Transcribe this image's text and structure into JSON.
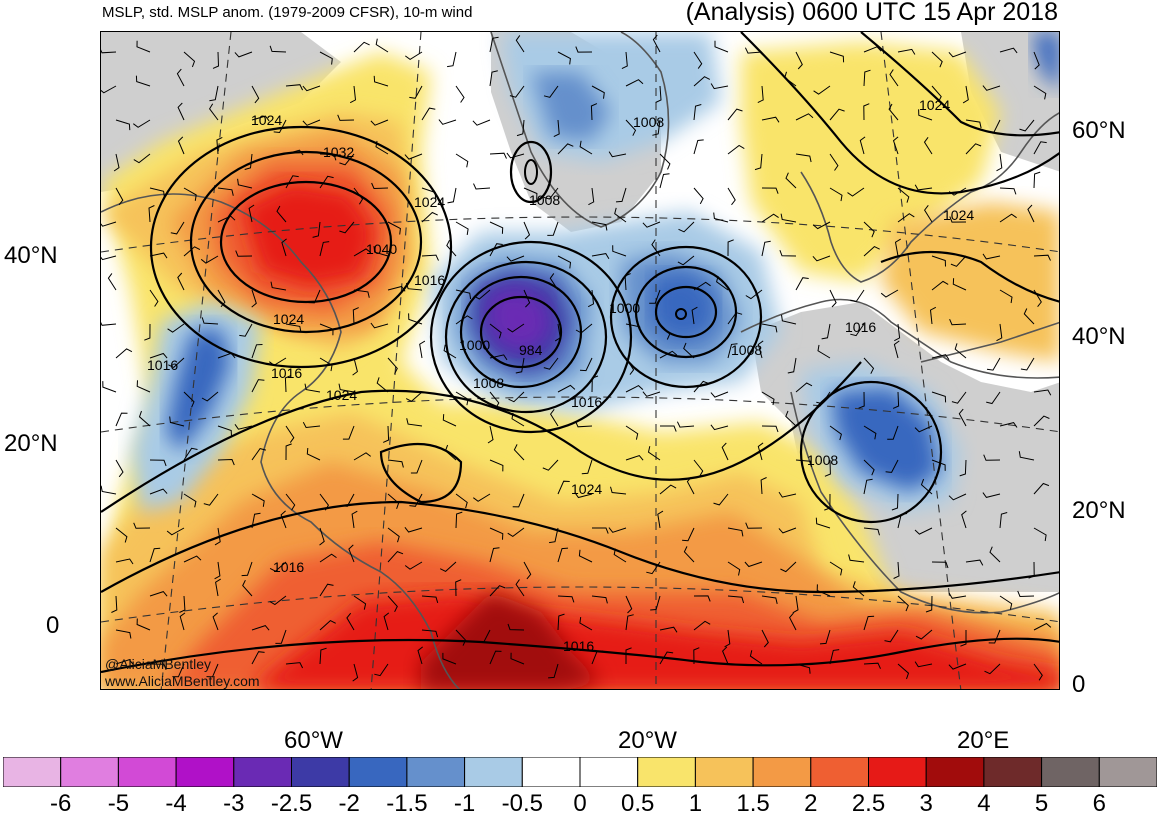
{
  "header": {
    "subtitle": "MSLP, std. MSLP anom. (1979-2009 CFSR), 10-m wind",
    "title": "(Analysis) 0600 UTC 15 Apr 2018"
  },
  "axes": {
    "lat_left": [
      "40°N",
      "20°N",
      "0"
    ],
    "lat_right": [
      "60°N",
      "40°N",
      "20°N",
      "0"
    ],
    "lon_bottom": [
      "60°W",
      "20°W",
      "20°E"
    ]
  },
  "contour_labels": [
    "1024",
    "1032",
    "1040",
    "1024",
    "1016",
    "1024",
    "1016",
    "1016",
    "1024",
    "1008",
    "1008",
    "1000",
    "984",
    "1008",
    "1016",
    "1000",
    "1008",
    "1024",
    "1016",
    "1024",
    "1024",
    "1016",
    "1008",
    "1016"
  ],
  "credit": {
    "handle": "@AliciaMBentley",
    "website": "www.AliciaMBentley.com"
  },
  "colorbar": {
    "ticks": [
      "-6",
      "-5",
      "-4",
      "-3",
      "-2.5",
      "-2",
      "-1.5",
      "-1",
      "-0.5",
      "0",
      "0.5",
      "1",
      "1.5",
      "2",
      "2.5",
      "3",
      "4",
      "5",
      "6"
    ],
    "colors": [
      "#e8b4e4",
      "#e07ee0",
      "#d24ad6",
      "#b011c8",
      "#6a2ab4",
      "#3d3aa6",
      "#3867bf",
      "#6590cc",
      "#a9cbe6",
      "#ffffff",
      "#ffffff",
      "#f9e46b",
      "#f6c25a",
      "#f39a45",
      "#ef5f32",
      "#e61a17",
      "#a10c0c",
      "#6e2a2a",
      "#6f6464",
      "#a09797"
    ]
  },
  "colors": {
    "land_gray": "#cfcfcf",
    "coast": "#555555",
    "contour": "#000000"
  }
}
